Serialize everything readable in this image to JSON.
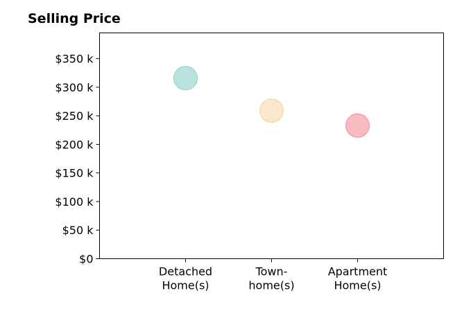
{
  "chart_data": {
    "type": "scatter",
    "title": "Selling Price",
    "xlabel": "",
    "ylabel": "",
    "categories": [
      [
        "Detached",
        "Home(s)"
      ],
      [
        "Town-",
        "home(s)"
      ],
      [
        "Apartment",
        "Home(s)"
      ]
    ],
    "values": [
      316,
      259,
      233
    ],
    "value_unit": "$ thousands",
    "point_colors": [
      "#a8dcd6",
      "#f7e3bd",
      "#f6aab3"
    ],
    "point_edge_colors": [
      "#8fcfc7",
      "#efd4a4",
      "#ee919c"
    ],
    "ylim": [
      0,
      395
    ],
    "yticks": [
      0,
      50,
      100,
      150,
      200,
      250,
      300,
      350
    ],
    "ytick_labels": [
      "$0",
      "$50 k",
      "$100 k",
      "$150 k",
      "$200 k",
      "$250 k",
      "$300 k",
      "$350 k"
    ],
    "xlim": [
      -1,
      3
    ],
    "grid": false,
    "legend": "none"
  }
}
